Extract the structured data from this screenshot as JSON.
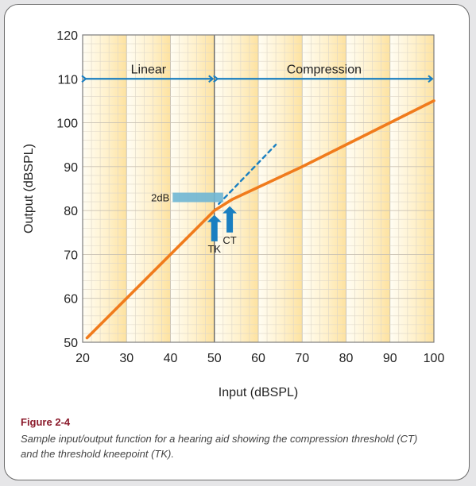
{
  "figure": {
    "label": "Figure 2-4",
    "caption": "Sample input/output function for a hearing aid showing the compression threshold (CT) and the threshold kneepoint (TK)."
  },
  "chart_data": {
    "type": "line",
    "xlabel": "Input (dBSPL)",
    "ylabel": "Output (dBSPL)",
    "xlim": [
      20,
      100
    ],
    "ylim": [
      50,
      120
    ],
    "xticks": [
      20,
      30,
      40,
      50,
      60,
      70,
      80,
      90,
      100
    ],
    "yticks": [
      50,
      60,
      70,
      80,
      90,
      100,
      110,
      120
    ],
    "grid": true,
    "series": [
      {
        "values": [
          [
            21,
            51
          ],
          [
            50,
            80
          ],
          [
            54,
            82.5
          ],
          [
            70,
            90
          ],
          [
            100,
            105
          ]
        ],
        "color": "#f07b1c",
        "style": "solid"
      },
      {
        "values": [
          [
            51,
            81.5
          ],
          [
            64,
            95
          ]
        ],
        "color": "#1a7fc1",
        "style": "dashed"
      }
    ],
    "regions": [
      {
        "label": "Linear",
        "from": 20,
        "to": 50
      },
      {
        "label": "Compression",
        "from": 50,
        "to": 100
      }
    ],
    "region_arrow_y": 110,
    "annotations": [
      {
        "text": "2dB",
        "bar_x": [
          40.5,
          52
        ],
        "y": 83
      },
      {
        "text": "TK",
        "arrow_x": 50,
        "arrow_y": [
          73,
          79
        ]
      },
      {
        "text": "CT",
        "arrow_x": 53.5,
        "arrow_y": [
          75,
          81
        ]
      }
    ],
    "colors": {
      "line": "#f07b1c",
      "arrow": "#1a7fc1",
      "bar": "#6fb6d4",
      "band_light": "#fffdf3",
      "band_dark": "#fde2a0"
    }
  }
}
